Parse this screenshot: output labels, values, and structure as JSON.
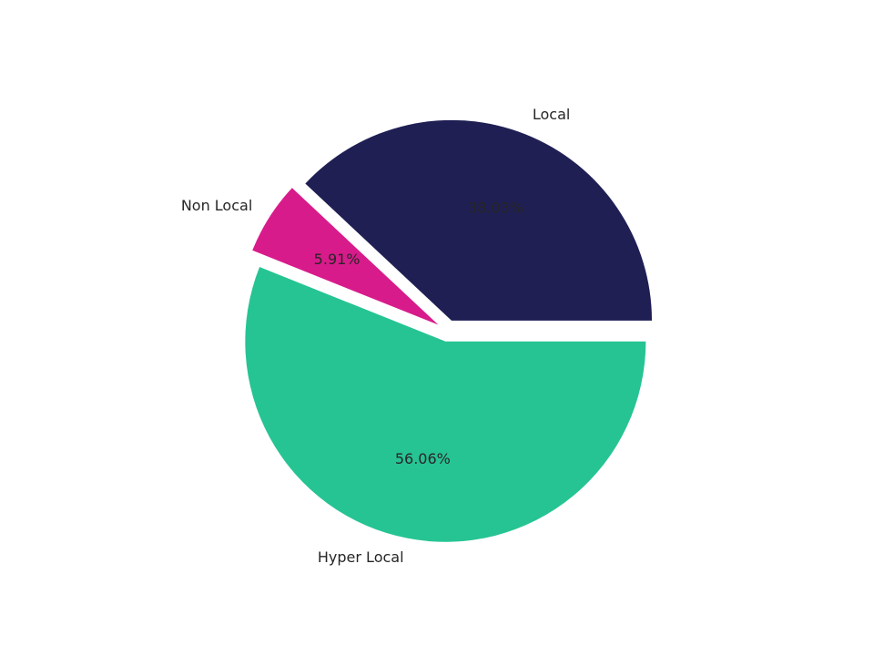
{
  "chart_data": {
    "type": "pie",
    "categories": [
      "Local",
      "Non Local",
      "Hyper Local"
    ],
    "values": [
      38.03,
      5.91,
      56.06
    ],
    "value_labels": [
      "38.03%",
      "5.91%",
      "56.06%"
    ],
    "colors": [
      "#1f1f54",
      "#d81b8b",
      "#26c493"
    ]
  }
}
